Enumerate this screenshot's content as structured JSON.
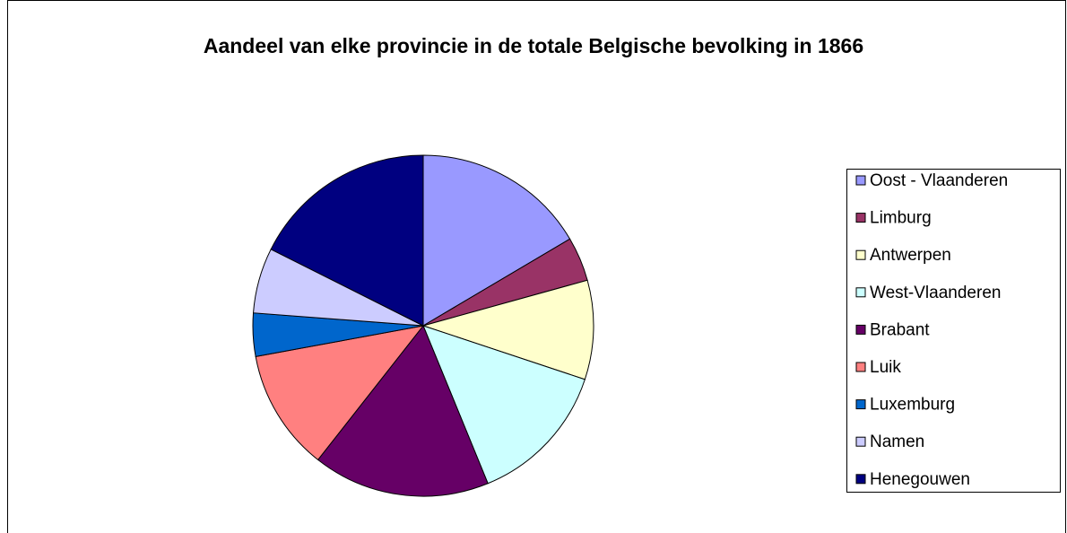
{
  "chart_data": {
    "type": "pie",
    "title": "Aandeel van elke provincie in de totale Belgische bevolking in 1866",
    "categories": [
      "Oost - Vlaanderen",
      "Limburg",
      "Antwerpen",
      "West-Vlaanderen",
      "Brabant",
      "Luik",
      "Luxemburg",
      "Namen",
      "Henegouwen"
    ],
    "values": [
      16.5,
      4.2,
      9.4,
      13.7,
      16.8,
      11.5,
      4.1,
      6.2,
      17.6
    ],
    "colors": [
      "#9999ff",
      "#993366",
      "#ffffcc",
      "#ccffff",
      "#660066",
      "#ff8080",
      "#0066cc",
      "#ccccff",
      "#000080"
    ],
    "legend": "right"
  }
}
